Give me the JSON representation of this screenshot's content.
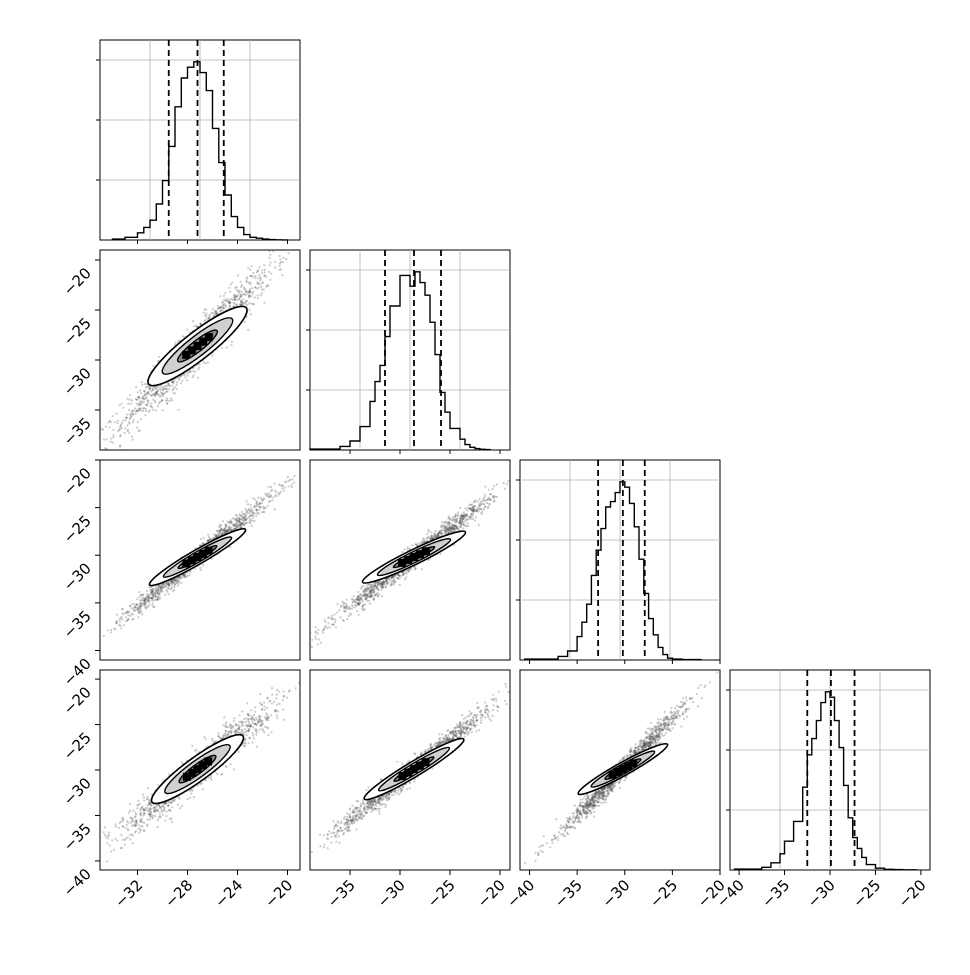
{
  "chart_data": {
    "type": "corner",
    "parameters": 4,
    "histograms": [
      {
        "xlim": [
          -35,
          -19
        ],
        "quantiles": [
          -29.5,
          -27.2,
          -25.1
        ],
        "bins_x": [
          -34.0,
          -33.0,
          -32.0,
          -31.5,
          -31.0,
          -30.5,
          -30.0,
          -29.5,
          -29.0,
          -28.5,
          -28.0,
          -27.5,
          -27.0,
          -26.5,
          -26.0,
          -25.5,
          -25.0,
          -24.5,
          -24.0,
          -23.5,
          -23.0,
          -22.5,
          -22.0,
          -21.5,
          -21.0,
          -20.5,
          -20.0
        ],
        "bins_y": [
          0.005,
          0.015,
          0.04,
          0.07,
          0.11,
          0.2,
          0.33,
          0.52,
          0.74,
          0.9,
          0.96,
          0.99,
          0.93,
          0.83,
          0.62,
          0.43,
          0.25,
          0.13,
          0.07,
          0.03,
          0.015,
          0.01,
          0.005,
          0.002,
          0.001,
          0.0005
        ]
      },
      {
        "xlim": [
          -39,
          -19
        ],
        "quantiles": [
          -31.5,
          -28.6,
          -25.9
        ],
        "bins_x": [
          -39.0,
          -36.0,
          -35.0,
          -34.0,
          -33.0,
          -32.5,
          -32.0,
          -31.5,
          -31.0,
          -30.0,
          -29.0,
          -28.5,
          -28.0,
          -27.5,
          -27.0,
          -26.5,
          -26.0,
          -25.5,
          -25.0,
          -24.0,
          -23.5,
          -23.0,
          -22.5,
          -22.0,
          -21.5,
          -21.0
        ],
        "bins_y": [
          0.005,
          0.02,
          0.05,
          0.13,
          0.27,
          0.38,
          0.47,
          0.63,
          0.8,
          0.97,
          0.91,
          0.99,
          0.93,
          0.86,
          0.71,
          0.53,
          0.32,
          0.21,
          0.12,
          0.06,
          0.03,
          0.015,
          0.008,
          0.004,
          0.002
        ]
      },
      {
        "xlim": [
          -41,
          -20
        ],
        "quantiles": [
          -32.8,
          -30.2,
          -27.9
        ],
        "bins_x": [
          -40.5,
          -37.0,
          -36.0,
          -35.0,
          -34.5,
          -34.0,
          -33.5,
          -33.0,
          -32.5,
          -32.0,
          -31.5,
          -31.0,
          -30.5,
          -30.0,
          -29.5,
          -29.0,
          -28.5,
          -28.0,
          -27.5,
          -27.0,
          -26.5,
          -26.0,
          -25.5,
          -25.0,
          -24.0,
          -22.0
        ],
        "bins_y": [
          0.005,
          0.02,
          0.05,
          0.13,
          0.21,
          0.31,
          0.47,
          0.61,
          0.73,
          0.85,
          0.88,
          0.93,
          0.99,
          0.96,
          0.87,
          0.74,
          0.56,
          0.37,
          0.23,
          0.14,
          0.07,
          0.03,
          0.01,
          0.005,
          0.002
        ]
      },
      {
        "xlim": [
          -41,
          -19
        ],
        "quantiles": [
          -32.5,
          -29.9,
          -27.3
        ],
        "bins_x": [
          -40.5,
          -37.5,
          -36.5,
          -35.5,
          -35.0,
          -34.0,
          -33.0,
          -32.5,
          -32.0,
          -31.5,
          -31.0,
          -30.5,
          -30.0,
          -29.5,
          -29.0,
          -28.5,
          -28.0,
          -27.5,
          -27.0,
          -26.5,
          -26.0,
          -25.0,
          -24.0,
          -23.0,
          -22.0,
          -20.5
        ],
        "bins_y": [
          0.005,
          0.015,
          0.04,
          0.09,
          0.16,
          0.27,
          0.46,
          0.64,
          0.73,
          0.83,
          0.93,
          0.99,
          0.96,
          0.83,
          0.68,
          0.47,
          0.29,
          0.18,
          0.12,
          0.07,
          0.03,
          0.01,
          0.004,
          0.002,
          0.001
        ]
      }
    ],
    "scatter_panels": [
      {
        "row": 1,
        "col": 0,
        "xlim": [
          -35,
          -19
        ],
        "ylim": [
          -39,
          -19
        ],
        "center": [
          -27.2,
          -28.6
        ],
        "sx": 2.2,
        "sy": 2.9,
        "rho": 0.955,
        "angle_deg": -38
      },
      {
        "row": 2,
        "col": 0,
        "xlim": [
          -35,
          -19
        ],
        "ylim": [
          -41,
          -20
        ],
        "center": [
          -27.2,
          -30.2
        ],
        "sx": 2.2,
        "sy": 2.4,
        "rho": 0.985,
        "angle_deg": -30
      },
      {
        "row": 2,
        "col": 1,
        "xlim": [
          -39,
          -19
        ],
        "ylim": [
          -41,
          -20
        ],
        "center": [
          -28.6,
          -30.2
        ],
        "sx": 2.9,
        "sy": 2.4,
        "rho": 0.985,
        "angle_deg": -26
      },
      {
        "row": 3,
        "col": 0,
        "xlim": [
          -35,
          -19
        ],
        "ylim": [
          -41,
          -19
        ],
        "center": [
          -27.2,
          -29.9
        ],
        "sx": 2.2,
        "sy": 2.6,
        "rho": 0.96,
        "angle_deg": -36
      },
      {
        "row": 3,
        "col": 1,
        "xlim": [
          -39,
          -19
        ],
        "ylim": [
          -41,
          -19
        ],
        "center": [
          -28.6,
          -29.9
        ],
        "sx": 2.9,
        "sy": 2.6,
        "rho": 0.985,
        "angle_deg": -31
      },
      {
        "row": 3,
        "col": 2,
        "xlim": [
          -41,
          -20
        ],
        "ylim": [
          -41,
          -19
        ],
        "center": [
          -30.2,
          -29.9
        ],
        "sx": 2.4,
        "sy": 2.6,
        "rho": 0.985,
        "angle_deg": -29
      }
    ],
    "x_tick_labels": [
      [
        "−32",
        "−28",
        "−24",
        "−20"
      ],
      [
        "−35",
        "−30",
        "−25",
        "−20"
      ],
      [
        "−40",
        "−35",
        "−30",
        "−25",
        "−20"
      ],
      [
        "−40",
        "−35",
        "−30",
        "−25",
        "−20"
      ]
    ],
    "x_tick_values": [
      [
        -32,
        -28,
        -24,
        -20
      ],
      [
        -35,
        -30,
        -25,
        -20
      ],
      [
        -40,
        -35,
        -30,
        -25,
        -20
      ],
      [
        -40,
        -35,
        -30,
        -25,
        -20
      ]
    ],
    "y_tick_labels": {
      "row1": [
        "−20",
        "−25",
        "−30",
        "−35"
      ],
      "row2": [
        "−20",
        "−25",
        "−30",
        "−35",
        "−40"
      ],
      "row3": [
        "−20",
        "−25",
        "−30",
        "−35",
        "−40"
      ]
    },
    "y_tick_values": {
      "row1": [
        -20,
        -25,
        -30,
        -35
      ],
      "row2": [
        -20,
        -25,
        -30,
        -35,
        -40
      ],
      "row3": [
        -20,
        -25,
        -30,
        -35,
        -40
      ]
    },
    "grid": true,
    "colors": {
      "points": "#444444",
      "lines": "#000000",
      "grid": "#b0b0b0"
    }
  }
}
